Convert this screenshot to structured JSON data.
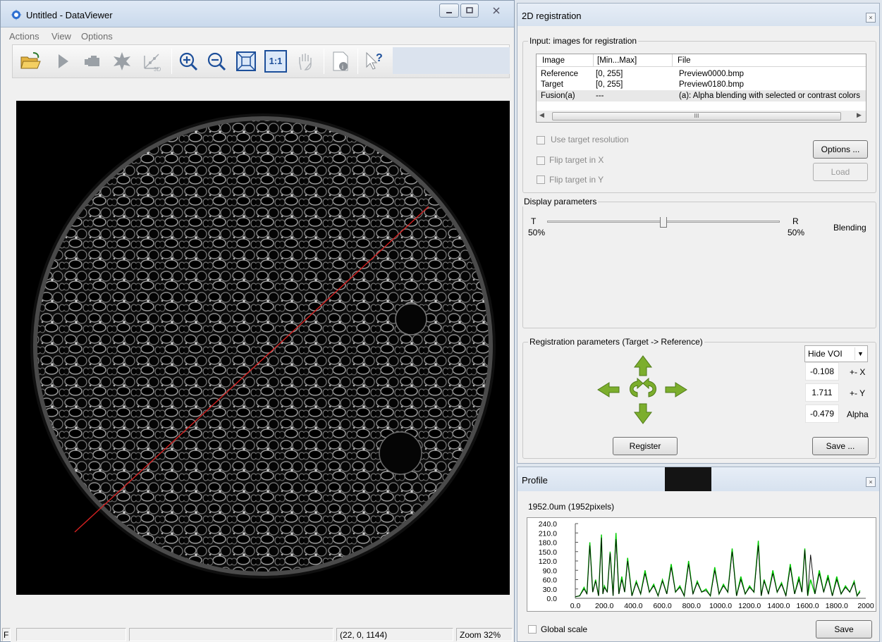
{
  "main_window": {
    "title": "Untitled - DataViewer",
    "menu": [
      "Actions",
      "View",
      "Options"
    ],
    "toolbar_icons": [
      "open-folder-icon",
      "play-icon",
      "camera-icon",
      "burst-icon",
      "3d-axes-icon",
      "zoom-in-icon",
      "zoom-out-icon",
      "fit-window-icon",
      "actual-size-icon",
      "pan-hand-icon",
      "file-info-icon",
      "help-cursor-icon"
    ],
    "actual_size_label": "1:1",
    "axes_label": "3D",
    "status": {
      "cell1": "F",
      "coordinates": "(22, 0, 1144)",
      "zoom": "Zoom 32%"
    }
  },
  "registration": {
    "title": "2D registration",
    "input_group": "Input: images for registration",
    "table": {
      "headers": [
        "Image",
        "[Min...Max]",
        "File"
      ],
      "rows": [
        [
          "Reference",
          "[0, 255]",
          "Preview0000.bmp"
        ],
        [
          "Target",
          "[0, 255]",
          "Preview0180.bmp"
        ],
        [
          "Fusion(a)",
          "---",
          "(a): Alpha blending with selected or contrast colors"
        ]
      ],
      "scroll_thumb": "III"
    },
    "checkboxes": [
      "Use target resolution",
      "Flip target in X",
      "Flip target in Y"
    ],
    "options_button": "Options ...",
    "load_button": "Load",
    "display_group": "Display parameters",
    "slider": {
      "left_label": "T",
      "left_value": "50%",
      "right_label": "R",
      "right_value": "50%",
      "mode": "Blending",
      "position": 0.5
    },
    "params_group": "Registration parameters (Target -> Reference)",
    "voi_select": "Hide VOI",
    "params": [
      {
        "value": "-0.108",
        "unit": "+- X"
      },
      {
        "value": "1.711",
        "unit": "+- Y"
      },
      {
        "value": "-0.479",
        "unit": "Alpha"
      }
    ],
    "register_button": "Register",
    "save_button": "Save ..."
  },
  "profile": {
    "title": "Profile",
    "length_label": "1952.0um (1952pixels)",
    "global_scale_label": "Global scale",
    "save_button": "Save"
  },
  "chart_data": {
    "type": "line",
    "title": "",
    "xlabel": "",
    "ylabel": "",
    "xlim": [
      0,
      2000
    ],
    "ylim": [
      0,
      240
    ],
    "xticks": [
      "0.0",
      "200.0",
      "400.0",
      "600.0",
      "800.0",
      "1000.0",
      "1200.0",
      "1400.0",
      "1600.0",
      "1800.0",
      "2000"
    ],
    "yticks": [
      "240.0",
      "210.0",
      "180.0",
      "150.0",
      "120.0",
      "90.0",
      "60.0",
      "30.0",
      "0.0"
    ],
    "series": [
      {
        "color": "#00cc00",
        "x": [
          0,
          60,
          100,
          140,
          180,
          200,
          240,
          280,
          320,
          360,
          420,
          480,
          540,
          600,
          660,
          720,
          780,
          840,
          900,
          960,
          1020,
          1080,
          1140,
          1200,
          1260,
          1300,
          1360,
          1420,
          1480,
          1540,
          1580,
          1620,
          1680,
          1740,
          1800,
          1860,
          1920,
          1960
        ],
        "y": [
          5,
          35,
          180,
          60,
          205,
          40,
          150,
          210,
          70,
          130,
          55,
          90,
          45,
          60,
          110,
          40,
          120,
          55,
          30,
          100,
          45,
          160,
          70,
          40,
          185,
          60,
          90,
          50,
          110,
          70,
          160,
          60,
          90,
          75,
          70,
          40,
          55,
          25
        ]
      },
      {
        "color": "#000000",
        "x": [
          0,
          60,
          100,
          140,
          180,
          200,
          240,
          280,
          320,
          360,
          420,
          480,
          540,
          600,
          660,
          720,
          780,
          840,
          900,
          960,
          1020,
          1080,
          1140,
          1200,
          1260,
          1300,
          1360,
          1420,
          1480,
          1540,
          1580,
          1620,
          1680,
          1740,
          1800,
          1860,
          1920,
          1960
        ],
        "y": [
          5,
          30,
          170,
          55,
          195,
          35,
          145,
          190,
          60,
          120,
          50,
          80,
          40,
          55,
          100,
          35,
          110,
          50,
          25,
          90,
          40,
          150,
          60,
          35,
          170,
          55,
          80,
          45,
          100,
          60,
          155,
          140,
          80,
          65,
          60,
          35,
          50,
          20
        ]
      }
    ]
  }
}
